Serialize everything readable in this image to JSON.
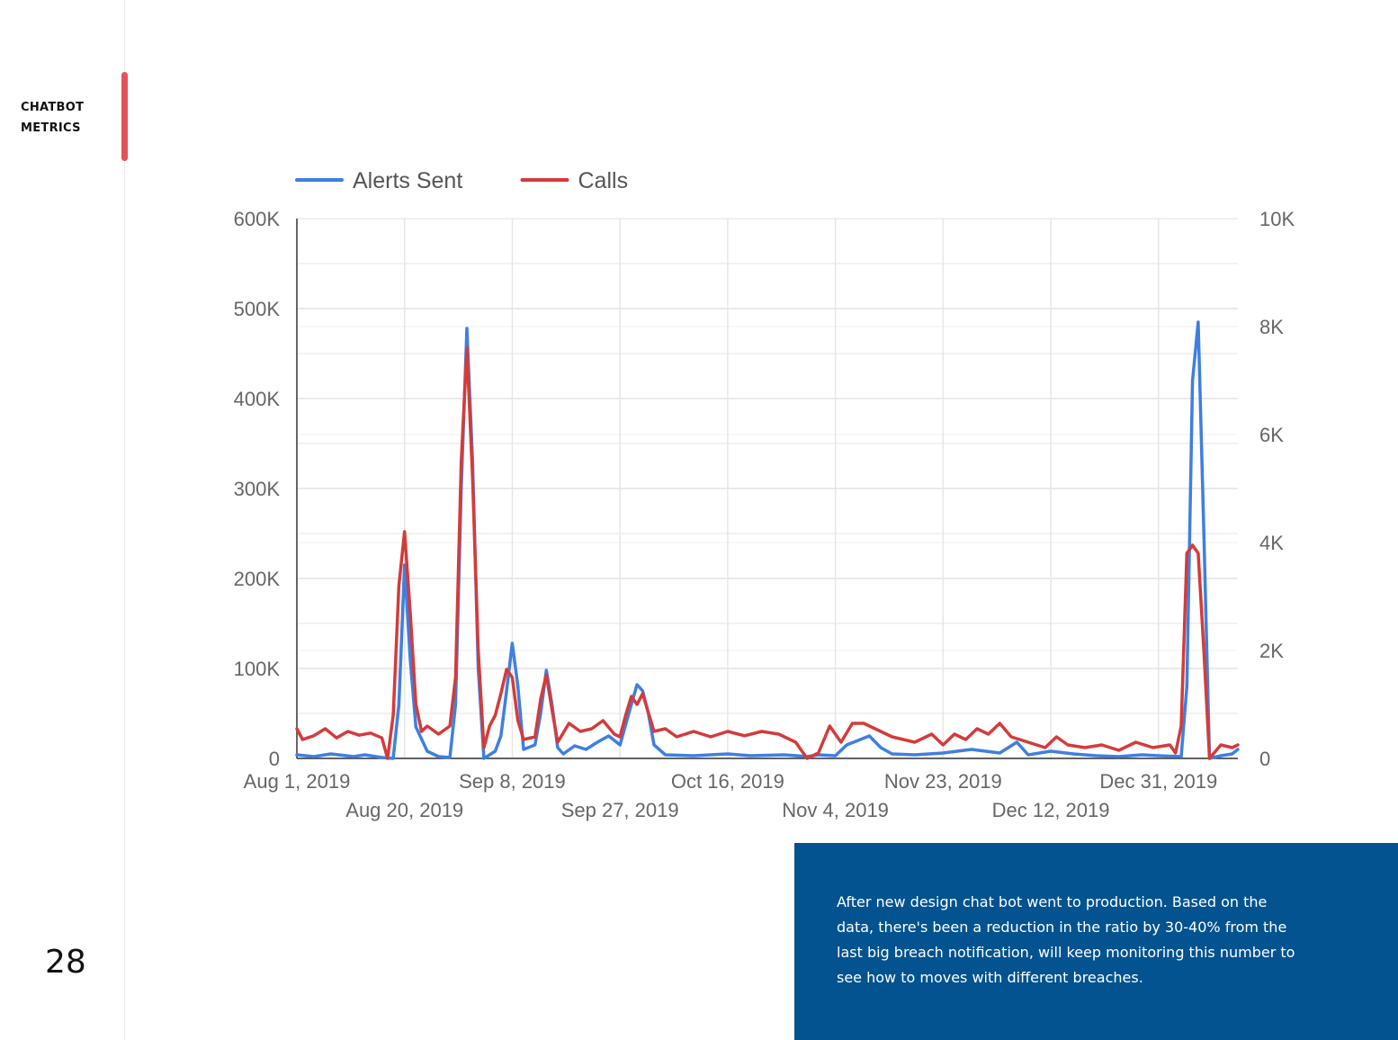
{
  "slide": {
    "section_label_line1": "CHATBOT",
    "section_label_line2": "METRICS",
    "page_number": "28",
    "note": "After new design chat bot went to production. Based on the data, there's been a reduction in the ratio by 30-40% from the last big breach notification, will keep monitoring this number to see how to moves with different breaches.",
    "accent_color": "#e2525a",
    "note_background": "#02538f"
  },
  "chart_data": {
    "type": "line",
    "title": "",
    "legend_position": "top-left",
    "grid": true,
    "x_range": [
      "2019-08-01",
      "2020-01-14"
    ],
    "x_ticks": [
      {
        "date": "2019-08-01",
        "label": "Aug 1, 2019",
        "row": 1
      },
      {
        "date": "2019-08-20",
        "label": "Aug 20, 2019",
        "row": 2
      },
      {
        "date": "2019-09-08",
        "label": "Sep 8, 2019",
        "row": 1
      },
      {
        "date": "2019-09-27",
        "label": "Sep 27, 2019",
        "row": 2
      },
      {
        "date": "2019-10-16",
        "label": "Oct 16, 2019",
        "row": 1
      },
      {
        "date": "2019-11-04",
        "label": "Nov 4, 2019",
        "row": 2
      },
      {
        "date": "2019-11-23",
        "label": "Nov 23, 2019",
        "row": 1
      },
      {
        "date": "2019-12-12",
        "label": "Dec 12, 2019",
        "row": 2
      },
      {
        "date": "2019-12-31",
        "label": "Dec 31, 2019",
        "row": 1
      }
    ],
    "y_left": {
      "range": [
        0,
        600000
      ],
      "ticks": [
        0,
        100000,
        200000,
        300000,
        400000,
        500000,
        600000
      ],
      "tick_labels": [
        "0",
        "100K",
        "200K",
        "300K",
        "400K",
        "500K",
        "600K"
      ]
    },
    "y_right": {
      "range": [
        0,
        10000
      ],
      "ticks": [
        0,
        2000,
        4000,
        6000,
        8000,
        10000
      ],
      "tick_labels": [
        "0",
        "2K",
        "4K",
        "6K",
        "8K",
        "10K"
      ]
    },
    "series": [
      {
        "name": "Alerts Sent",
        "axis": "left",
        "color": "#3f7fe0",
        "points": [
          [
            "2019-08-01",
            4000
          ],
          [
            "2019-08-04",
            2000
          ],
          [
            "2019-08-07",
            5000
          ],
          [
            "2019-08-11",
            2000
          ],
          [
            "2019-08-13",
            4000
          ],
          [
            "2019-08-16",
            1000
          ],
          [
            "2019-08-18",
            0
          ],
          [
            "2019-08-19",
            60000
          ],
          [
            "2019-08-20",
            215000
          ],
          [
            "2019-08-21",
            110000
          ],
          [
            "2019-08-22",
            35000
          ],
          [
            "2019-08-24",
            8000
          ],
          [
            "2019-08-26",
            2000
          ],
          [
            "2019-08-28",
            1000
          ],
          [
            "2019-08-29",
            60000
          ],
          [
            "2019-08-30",
            300000
          ],
          [
            "2019-08-31",
            478000
          ],
          [
            "2019-09-01",
            330000
          ],
          [
            "2019-09-02",
            100000
          ],
          [
            "2019-09-03",
            0
          ],
          [
            "2019-09-05",
            8000
          ],
          [
            "2019-09-06",
            25000
          ],
          [
            "2019-09-07",
            75000
          ],
          [
            "2019-09-08",
            128000
          ],
          [
            "2019-09-09",
            80000
          ],
          [
            "2019-09-10",
            10000
          ],
          [
            "2019-09-12",
            15000
          ],
          [
            "2019-09-13",
            50000
          ],
          [
            "2019-09-14",
            98000
          ],
          [
            "2019-09-15",
            60000
          ],
          [
            "2019-09-16",
            12000
          ],
          [
            "2019-09-17",
            5000
          ],
          [
            "2019-09-19",
            14000
          ],
          [
            "2019-09-21",
            10000
          ],
          [
            "2019-09-23",
            18000
          ],
          [
            "2019-09-25",
            25000
          ],
          [
            "2019-09-27",
            15000
          ],
          [
            "2019-09-29",
            60000
          ],
          [
            "2019-09-30",
            82000
          ],
          [
            "2019-10-01",
            75000
          ],
          [
            "2019-10-02",
            50000
          ],
          [
            "2019-10-03",
            15000
          ],
          [
            "2019-10-05",
            4000
          ],
          [
            "2019-10-10",
            3000
          ],
          [
            "2019-10-16",
            5000
          ],
          [
            "2019-10-20",
            3000
          ],
          [
            "2019-10-26",
            4000
          ],
          [
            "2019-10-30",
            2000
          ],
          [
            "2019-11-01",
            4000
          ],
          [
            "2019-11-04",
            3000
          ],
          [
            "2019-11-06",
            15000
          ],
          [
            "2019-11-08",
            20000
          ],
          [
            "2019-11-10",
            25000
          ],
          [
            "2019-11-12",
            12000
          ],
          [
            "2019-11-14",
            5000
          ],
          [
            "2019-11-18",
            4000
          ],
          [
            "2019-11-23",
            6000
          ],
          [
            "2019-11-28",
            10000
          ],
          [
            "2019-12-03",
            6000
          ],
          [
            "2019-12-06",
            18000
          ],
          [
            "2019-12-08",
            4000
          ],
          [
            "2019-12-12",
            8000
          ],
          [
            "2019-12-16",
            5000
          ],
          [
            "2019-12-20",
            3000
          ],
          [
            "2019-12-24",
            2000
          ],
          [
            "2019-12-28",
            4000
          ],
          [
            "2019-12-31",
            3000
          ],
          [
            "2020-01-04",
            2000
          ],
          [
            "2020-01-05",
            80000
          ],
          [
            "2020-01-06",
            420000
          ],
          [
            "2020-01-07",
            485000
          ],
          [
            "2020-01-08",
            250000
          ],
          [
            "2020-01-09",
            0
          ],
          [
            "2020-01-11",
            3000
          ],
          [
            "2020-01-13",
            5000
          ],
          [
            "2020-01-14",
            10000
          ]
        ]
      },
      {
        "name": "Calls",
        "axis": "right",
        "color": "#d43b3b",
        "points": [
          [
            "2019-08-01",
            550
          ],
          [
            "2019-08-02",
            350
          ],
          [
            "2019-08-04",
            420
          ],
          [
            "2019-08-06",
            550
          ],
          [
            "2019-08-08",
            380
          ],
          [
            "2019-08-10",
            500
          ],
          [
            "2019-08-12",
            430
          ],
          [
            "2019-08-14",
            470
          ],
          [
            "2019-08-16",
            380
          ],
          [
            "2019-08-17",
            0
          ],
          [
            "2019-08-18",
            800
          ],
          [
            "2019-08-19",
            3200
          ],
          [
            "2019-08-20",
            4200
          ],
          [
            "2019-08-21",
            2700
          ],
          [
            "2019-08-22",
            1000
          ],
          [
            "2019-08-23",
            500
          ],
          [
            "2019-08-24",
            600
          ],
          [
            "2019-08-26",
            450
          ],
          [
            "2019-08-28",
            600
          ],
          [
            "2019-08-29",
            1500
          ],
          [
            "2019-08-30",
            5500
          ],
          [
            "2019-08-31",
            7600
          ],
          [
            "2019-09-01",
            5200
          ],
          [
            "2019-09-02",
            2000
          ],
          [
            "2019-09-03",
            200
          ],
          [
            "2019-09-04",
            600
          ],
          [
            "2019-09-05",
            800
          ],
          [
            "2019-09-06",
            1200
          ],
          [
            "2019-09-07",
            1650
          ],
          [
            "2019-09-08",
            1500
          ],
          [
            "2019-09-09",
            700
          ],
          [
            "2019-09-10",
            350
          ],
          [
            "2019-09-12",
            400
          ],
          [
            "2019-09-13",
            1100
          ],
          [
            "2019-09-14",
            1550
          ],
          [
            "2019-09-15",
            900
          ],
          [
            "2019-09-16",
            300
          ],
          [
            "2019-09-18",
            650
          ],
          [
            "2019-09-20",
            500
          ],
          [
            "2019-09-22",
            550
          ],
          [
            "2019-09-24",
            700
          ],
          [
            "2019-09-26",
            450
          ],
          [
            "2019-09-27",
            400
          ],
          [
            "2019-09-28",
            800
          ],
          [
            "2019-09-29",
            1150
          ],
          [
            "2019-09-30",
            1000
          ],
          [
            "2019-10-01",
            1200
          ],
          [
            "2019-10-02",
            850
          ],
          [
            "2019-10-03",
            500
          ],
          [
            "2019-10-05",
            550
          ],
          [
            "2019-10-07",
            400
          ],
          [
            "2019-10-10",
            500
          ],
          [
            "2019-10-13",
            400
          ],
          [
            "2019-10-16",
            500
          ],
          [
            "2019-10-19",
            420
          ],
          [
            "2019-10-22",
            500
          ],
          [
            "2019-10-25",
            450
          ],
          [
            "2019-10-28",
            300
          ],
          [
            "2019-10-30",
            0
          ],
          [
            "2019-11-01",
            100
          ],
          [
            "2019-11-03",
            600
          ],
          [
            "2019-11-05",
            300
          ],
          [
            "2019-11-07",
            650
          ],
          [
            "2019-11-09",
            650
          ],
          [
            "2019-11-11",
            550
          ],
          [
            "2019-11-14",
            400
          ],
          [
            "2019-11-18",
            300
          ],
          [
            "2019-11-21",
            450
          ],
          [
            "2019-11-23",
            250
          ],
          [
            "2019-11-25",
            450
          ],
          [
            "2019-11-27",
            350
          ],
          [
            "2019-11-29",
            550
          ],
          [
            "2019-12-01",
            450
          ],
          [
            "2019-12-03",
            650
          ],
          [
            "2019-12-05",
            400
          ],
          [
            "2019-12-08",
            300
          ],
          [
            "2019-12-11",
            200
          ],
          [
            "2019-12-13",
            400
          ],
          [
            "2019-12-15",
            250
          ],
          [
            "2019-12-18",
            200
          ],
          [
            "2019-12-21",
            250
          ],
          [
            "2019-12-24",
            150
          ],
          [
            "2019-12-27",
            300
          ],
          [
            "2019-12-30",
            200
          ],
          [
            "2020-01-02",
            250
          ],
          [
            "2020-01-03",
            100
          ],
          [
            "2020-01-04",
            600
          ],
          [
            "2020-01-05",
            3800
          ],
          [
            "2020-01-06",
            3950
          ],
          [
            "2020-01-07",
            3800
          ],
          [
            "2020-01-08",
            2000
          ],
          [
            "2020-01-09",
            0
          ],
          [
            "2020-01-11",
            250
          ],
          [
            "2020-01-13",
            200
          ],
          [
            "2020-01-14",
            250
          ]
        ]
      }
    ]
  }
}
